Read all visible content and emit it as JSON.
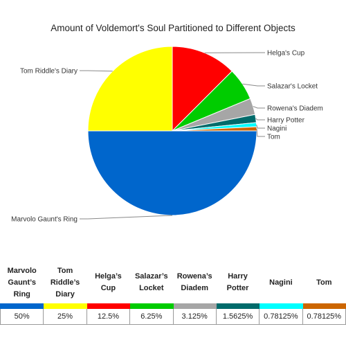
{
  "chart_data": {
    "type": "pie",
    "title": "Amount of Voldemort's Soul Partitioned to Different Objects",
    "slices": [
      {
        "label": "Marvolo Gaunt's Ring",
        "value": 50,
        "color": "#0066cc",
        "table_label": "Marvolo Gaunt’s Ring",
        "display": "50%"
      },
      {
        "label": "Tom Riddle's Diary",
        "value": 25,
        "color": "#ffff00",
        "table_label": "Tom Riddle’s Diary",
        "display": "25%"
      },
      {
        "label": "Helga's Cup",
        "value": 12.5,
        "color": "#ff0000",
        "table_label": "Helga’s Cup",
        "display": "12.5%"
      },
      {
        "label": "Salazar's Locket",
        "value": 6.25,
        "color": "#00cc00",
        "table_label": "Salazar’s Locket",
        "display": "6.25%"
      },
      {
        "label": "Rowena's Diadem",
        "value": 3.125,
        "color": "#a6a6a6",
        "table_label": "Rowena’s Diadem",
        "display": "3.125%"
      },
      {
        "label": "Harry Potter",
        "value": 1.5625,
        "color": "#006b6b",
        "table_label": "Harry Potter",
        "display": "1.5625%"
      },
      {
        "label": "Nagini",
        "value": 0.78125,
        "color": "#00ffff",
        "table_label": "Nagini",
        "display": "0.78125%"
      },
      {
        "label": "Tom",
        "value": 0.78125,
        "color": "#cc6600",
        "table_label": "Tom",
        "display": "0.78125%"
      }
    ]
  }
}
